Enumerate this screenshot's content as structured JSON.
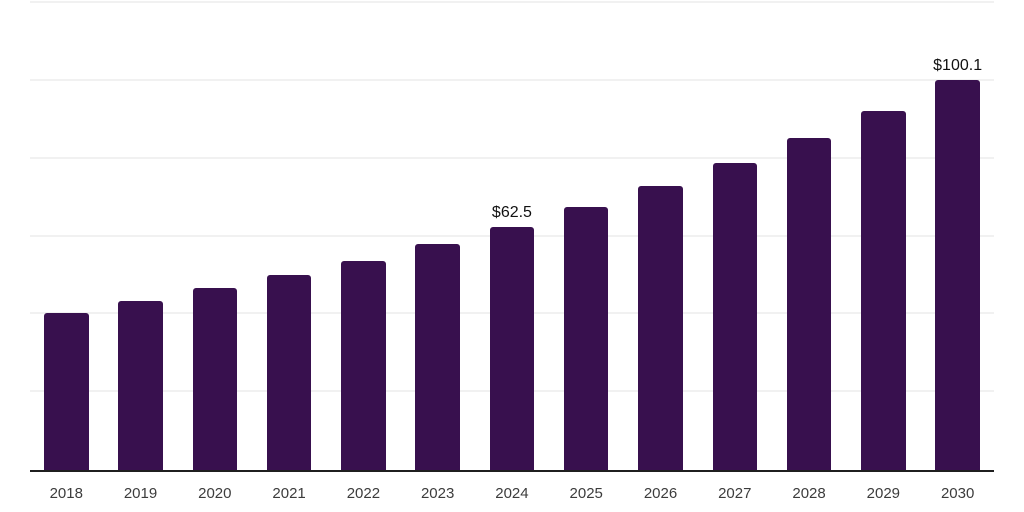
{
  "chart_data": {
    "type": "bar",
    "title": "",
    "xlabel": "",
    "ylabel": "",
    "categories": [
      "2018",
      "2019",
      "2020",
      "2021",
      "2022",
      "2023",
      "2024",
      "2025",
      "2026",
      "2027",
      "2028",
      "2029",
      "2030"
    ],
    "values": [
      40.3,
      43.4,
      46.7,
      50.1,
      53.8,
      58.0,
      62.5,
      67.5,
      73.0,
      78.9,
      85.2,
      92.2,
      100.1
    ],
    "data_labels": {
      "2024": "$62.5",
      "2030": "$100.1"
    },
    "ylim": [
      0,
      120
    ],
    "grid_step": 20,
    "grid": true,
    "legend": false,
    "y_tick_labels_visible": false,
    "colors": {
      "bar": "#38104e",
      "axis": "#1f1f1f",
      "gridline": "#f1f1f1",
      "tick_label": "#3c3c3c",
      "data_label": "#111111"
    }
  }
}
